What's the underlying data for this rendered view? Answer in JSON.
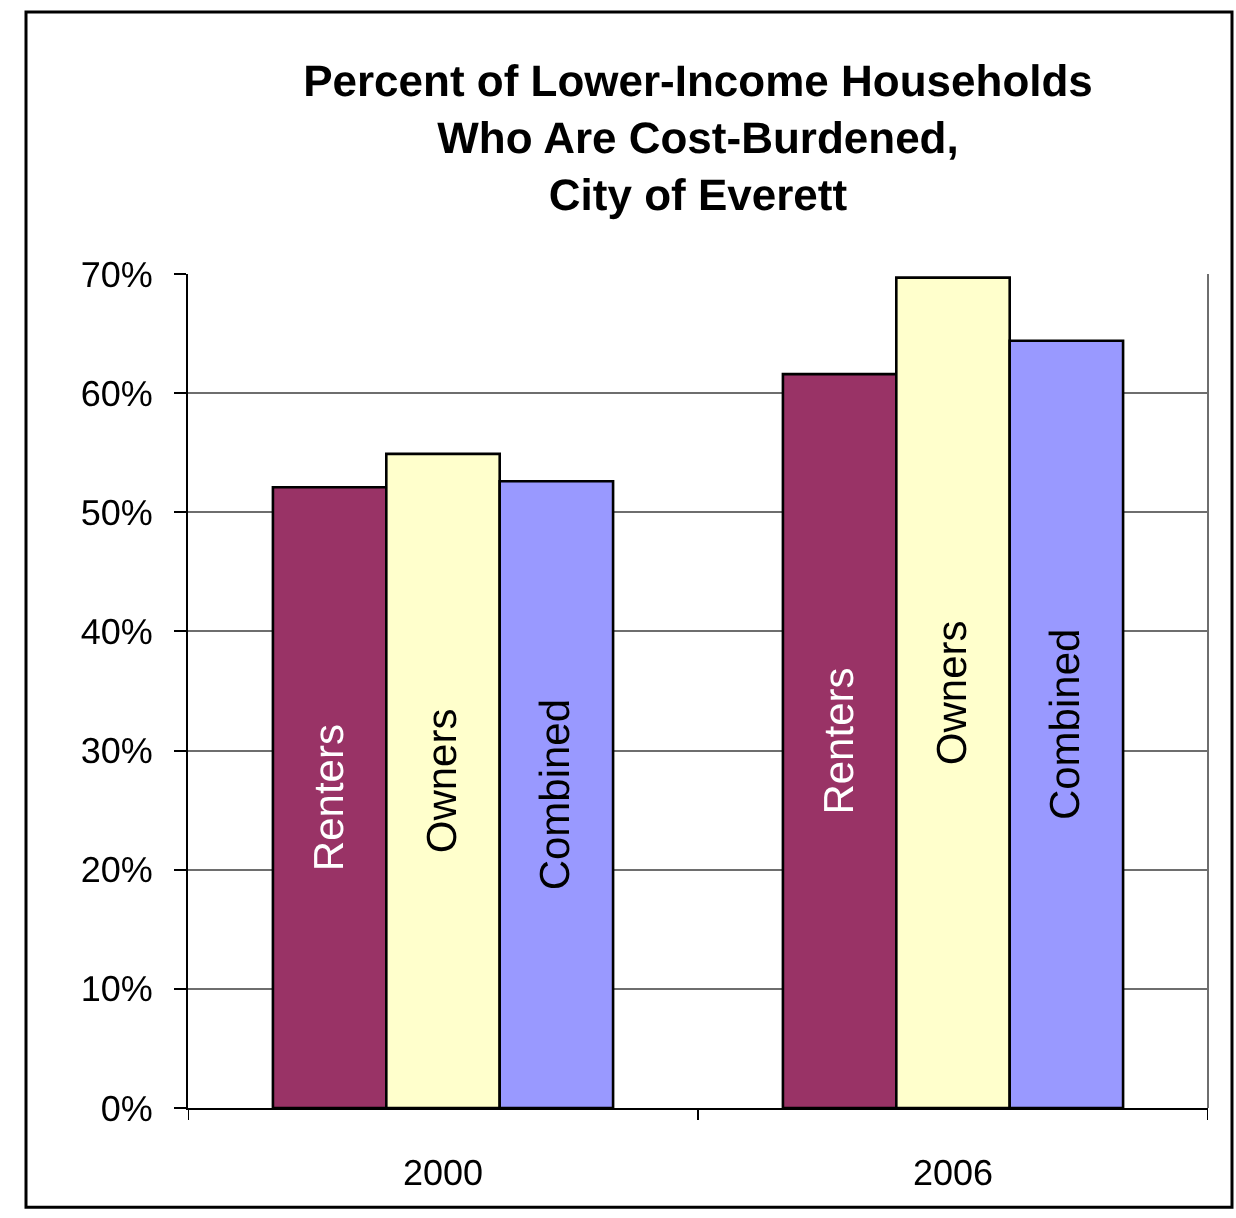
{
  "chart_data": {
    "type": "bar",
    "title": "Percent of Lower-Income Households\nWho Are Cost-Burdened,\nCity of Everett",
    "categories": [
      "2000",
      "2006"
    ],
    "series": [
      {
        "name": "Renters",
        "color": "#993366",
        "values": [
          52.1,
          61.6
        ]
      },
      {
        "name": "Owners",
        "color": "#ffffcc",
        "values": [
          54.9,
          69.7
        ]
      },
      {
        "name": "Combined",
        "color": "#9999ff",
        "values": [
          52.6,
          64.4
        ]
      }
    ],
    "ylim": [
      0,
      70
    ],
    "yticks": [
      {
        "value": 0,
        "label": "0%"
      },
      {
        "value": 10,
        "label": "10%"
      },
      {
        "value": 20,
        "label": "20%"
      },
      {
        "value": 30,
        "label": "30%"
      },
      {
        "value": 40,
        "label": "40%"
      },
      {
        "value": 50,
        "label": "50%"
      },
      {
        "value": 60,
        "label": "60%"
      },
      {
        "value": 70,
        "label": "70%"
      }
    ],
    "grid": "y",
    "legend": false
  }
}
